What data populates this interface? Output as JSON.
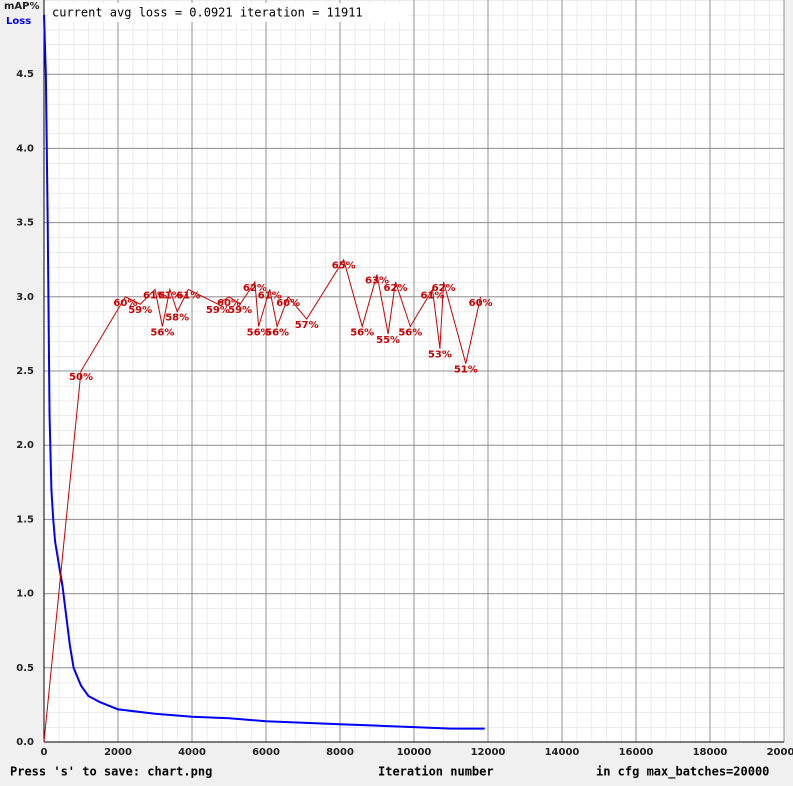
{
  "chart_data": {
    "type": "line",
    "header": "current avg loss = 0.0921    iteration = 11911",
    "y_label_map": "mAP%",
    "y_label_loss": "Loss",
    "footer_left": "Press 's' to save: chart.png",
    "x_label": "Iteration number",
    "footer_right": "in cfg max_batches=20000",
    "xlim": [
      0,
      20000
    ],
    "xticks": [
      0,
      2000,
      4000,
      6000,
      8000,
      10000,
      12000,
      14000,
      16000,
      18000,
      20000
    ],
    "ylim": [
      0,
      5
    ],
    "yticks": [
      {
        "value": 0,
        "label": "0.0"
      },
      {
        "value": 0.5,
        "label": "0.5"
      },
      {
        "value": 1,
        "label": "1.0"
      },
      {
        "value": 1.5,
        "label": "1.5"
      },
      {
        "value": 2,
        "label": "2.0"
      },
      {
        "value": 2.5,
        "label": "2.5"
      },
      {
        "value": 3,
        "label": "3.0"
      },
      {
        "value": 3.5,
        "label": "3.5"
      },
      {
        "value": 4,
        "label": "4.0"
      },
      {
        "value": 4.5,
        "label": "4.5"
      }
    ],
    "y2lim": [
      0,
      100
    ],
    "grid": true,
    "series": [
      {
        "name": "Loss",
        "color": "#0000ff",
        "x": [
          0,
          50,
          100,
          150,
          200,
          250,
          300,
          400,
          500,
          600,
          700,
          800,
          1000,
          1200,
          1500,
          2000,
          3000,
          4000,
          5000,
          6000,
          7000,
          8000,
          9000,
          10000,
          11000,
          11911
        ],
        "values": [
          4.9,
          4.5,
          3.5,
          2.2,
          1.7,
          1.5,
          1.35,
          1.2,
          1.05,
          0.85,
          0.65,
          0.5,
          0.38,
          0.31,
          0.27,
          0.22,
          0.19,
          0.17,
          0.16,
          0.14,
          0.13,
          0.12,
          0.11,
          0.1,
          0.09,
          0.09
        ]
      },
      {
        "name": "mAP%",
        "color": "#cc0000",
        "axis": "y2",
        "x": [
          0,
          1000,
          2200,
          2600,
          3000,
          3200,
          3400,
          3600,
          3900,
          4700,
          5000,
          5300,
          5700,
          5800,
          6100,
          6300,
          6600,
          7100,
          8100,
          8600,
          9000,
          9300,
          9500,
          9900,
          10500,
          10700,
          10800,
          11400,
          11800
        ],
        "values": [
          0,
          50,
          60,
          59,
          61,
          56,
          61,
          58,
          61,
          59,
          60,
          59,
          62,
          56,
          61,
          56,
          60,
          57,
          65,
          56,
          63,
          55,
          62,
          56,
          61,
          53,
          62,
          51,
          60
        ],
        "value_labels": [
          null,
          "50%",
          "60%",
          "59%",
          "61%",
          "56%",
          "61%",
          "58%",
          "61%",
          "59%",
          "60%",
          "59%",
          "62%",
          "56%",
          "61%",
          "56%",
          "60%",
          "57%",
          "65%",
          "56%",
          "63%",
          "55%",
          "62%",
          "56%",
          "61%",
          "53%",
          "62%",
          "51%",
          "60%"
        ]
      }
    ]
  }
}
